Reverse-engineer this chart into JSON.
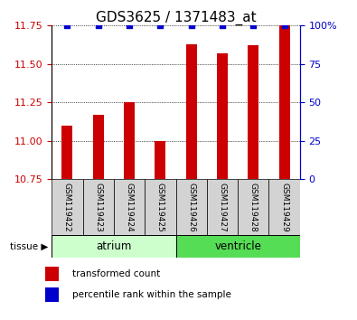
{
  "title": "GDS3625 / 1371483_at",
  "samples": [
    "GSM119422",
    "GSM119423",
    "GSM119424",
    "GSM119425",
    "GSM119426",
    "GSM119427",
    "GSM119428",
    "GSM119429"
  ],
  "red_values": [
    11.1,
    11.17,
    11.25,
    11.0,
    11.63,
    11.57,
    11.62,
    11.75
  ],
  "blue_values": [
    100,
    100,
    100,
    100,
    100,
    100,
    100,
    100
  ],
  "ylim_left": [
    10.75,
    11.75
  ],
  "ylim_right": [
    0,
    100
  ],
  "yticks_left": [
    10.75,
    11.0,
    11.25,
    11.5,
    11.75
  ],
  "yticks_right": [
    0,
    25,
    50,
    75,
    100
  ],
  "bar_bottom": 10.75,
  "bar_color": "#cc0000",
  "blue_color": "#0000cc",
  "tissue_groups": [
    {
      "label": "atrium",
      "start": 0,
      "end": 3,
      "color": "#ccffcc"
    },
    {
      "label": "ventricle",
      "start": 4,
      "end": 7,
      "color": "#55dd55"
    }
  ],
  "legend_items": [
    {
      "label": "transformed count",
      "color": "#cc0000"
    },
    {
      "label": "percentile rank within the sample",
      "color": "#0000cc"
    }
  ],
  "tick_label_color_left": "#cc0000",
  "tick_label_color_right": "#0000cc",
  "title_fontsize": 11,
  "tick_fontsize": 8,
  "bar_width": 0.35,
  "label_box_color": "#d3d3d3",
  "ytick_right_labels": [
    "0",
    "25",
    "50",
    "75",
    "100%"
  ]
}
